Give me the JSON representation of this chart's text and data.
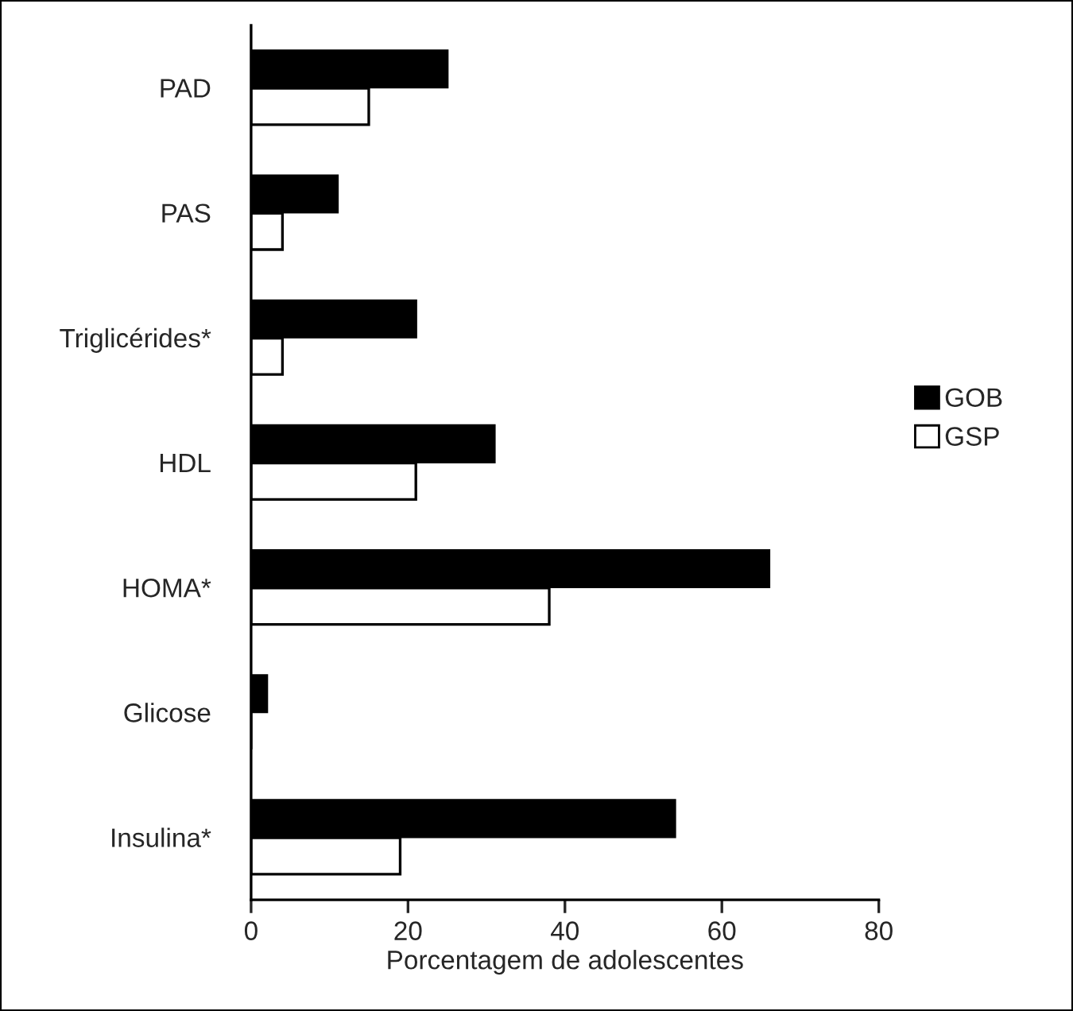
{
  "chart_data": {
    "type": "bar",
    "orientation": "horizontal",
    "xlabel": "Porcentagem de adolescentes",
    "categories": [
      "PAD",
      "PAS",
      "Triglicérides*",
      "HDL",
      "HOMA*",
      "Glicose",
      "Insulina*"
    ],
    "series": [
      {
        "name": "GOB",
        "color": "#000000",
        "values": [
          25,
          11,
          21,
          31,
          66,
          2,
          54
        ]
      },
      {
        "name": "GSP",
        "color": "#ffffff",
        "values": [
          15,
          4,
          4,
          21,
          38,
          0,
          19
        ]
      }
    ],
    "xlim": [
      0,
      80
    ],
    "xticks": [
      0,
      20,
      40,
      60,
      80
    ],
    "grid": false,
    "legend": "right"
  }
}
